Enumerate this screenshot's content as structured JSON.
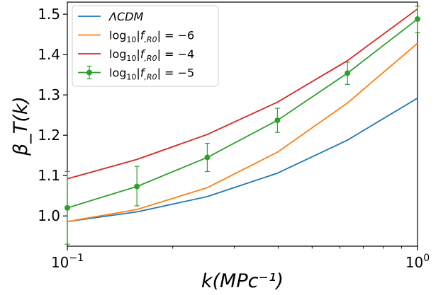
{
  "chart_data": {
    "type": "line",
    "xscale": "log",
    "xlim": [
      0.1,
      1.0
    ],
    "ylim": [
      0.925,
      1.53
    ],
    "xlabel": "k(MPc⁻¹)",
    "ylabel": "β_T(k)",
    "x_ticks": [
      {
        "value": 0.1,
        "base": "10",
        "exp": "−1"
      },
      {
        "value": 1.0,
        "base": "10",
        "exp": "0"
      }
    ],
    "y_ticks": [
      1.0,
      1.1,
      1.2,
      1.3,
      1.4,
      1.5
    ],
    "y_tick_labels": [
      "1.0",
      "1.1",
      "1.2",
      "1.3",
      "1.4",
      "1.5"
    ],
    "legend_position": "top-left",
    "x": [
      0.1,
      0.158,
      0.251,
      0.398,
      0.631,
      1.0
    ],
    "series": [
      {
        "name": "ΛCDM",
        "color": "#1f77b4",
        "style": "line",
        "values": [
          0.986,
          1.01,
          1.048,
          1.106,
          1.188,
          1.292
        ]
      },
      {
        "name": "log10|f,R0| = −6",
        "legend_parts": [
          "log",
          "10",
          "|f",
          ",R0",
          "| = −6"
        ],
        "color": "#ff7f0e",
        "style": "line",
        "values": [
          0.986,
          1.016,
          1.07,
          1.158,
          1.28,
          1.428
        ]
      },
      {
        "name": "log10|f,R0| = −4",
        "legend_parts": [
          "log",
          "10",
          "|f",
          ",R0",
          "| = −4"
        ],
        "color": "#d62728",
        "style": "line",
        "values": [
          1.092,
          1.14,
          1.202,
          1.282,
          1.385,
          1.513
        ]
      },
      {
        "name": "log10|f,R0| = −5",
        "legend_parts": [
          "log",
          "10",
          "|f",
          ",R0",
          "| = −5"
        ],
        "color": "#2ca02c",
        "style": "errorbar",
        "values": [
          1.02,
          1.073,
          1.145,
          1.237,
          1.354,
          1.488
        ],
        "err_low": [
          0.09,
          0.048,
          0.035,
          0.03,
          0.028,
          0.033
        ],
        "err_high": [
          0.09,
          0.05,
          0.035,
          0.03,
          0.027,
          0.032
        ]
      }
    ]
  }
}
